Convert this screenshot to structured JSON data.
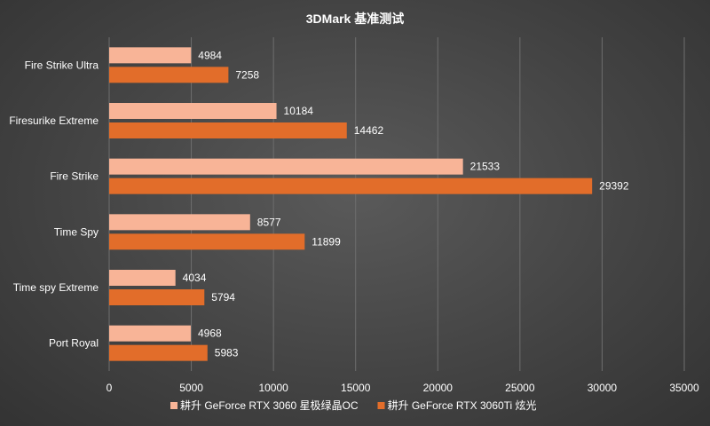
{
  "chart_data": {
    "type": "bar",
    "orientation": "horizontal",
    "title": "3DMark 基准测试",
    "categories": [
      "Fire Strike Ultra",
      "Firesurike Extreme",
      "Fire Strike",
      "Time Spy",
      "Time spy Extreme",
      "Port Royal"
    ],
    "series": [
      {
        "name": "耕升 GeForce RTX 3060 星极绿晶OC",
        "color": "#f8b497",
        "values": [
          4984,
          10184,
          21533,
          8577,
          4034,
          4968
        ]
      },
      {
        "name": "耕升 GeForce RTX 3060Ti 炫光",
        "color": "#e26d2a",
        "values": [
          7258,
          14462,
          29392,
          11899,
          5794,
          5983
        ]
      }
    ],
    "xlim": [
      0,
      35000
    ],
    "xticks": [
      0,
      5000,
      10000,
      15000,
      20000,
      25000,
      30000,
      35000
    ],
    "gridlines": true,
    "legend_position": "bottom",
    "label_color": "#ffffff",
    "grid_color": "#6e6e6e"
  }
}
